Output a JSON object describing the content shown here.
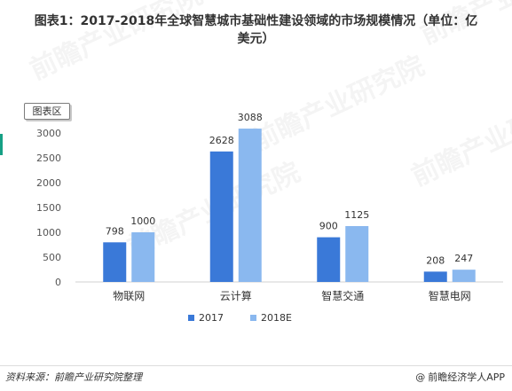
{
  "title_line1": "图表1：2017-2018年全球智慧城市基础性建设领域的市场规模情况（单位：亿",
  "title_line2": "美元）",
  "chart_area_label": "图表区",
  "watermark_text": "前瞻产业研究院",
  "footer": {
    "source": "资料来源：前瞻产业研究院整理",
    "brand_symbol": "@",
    "brand": "前瞻经济学人APP"
  },
  "colors": {
    "series_2017": "#3a79d8",
    "series_2018E": "#8ab8ef",
    "axis": "#d0d0d0",
    "edge_mark": "#16a085"
  },
  "chart_data": {
    "type": "bar",
    "categories": [
      "物联网",
      "云计算",
      "智慧交通",
      "智慧电网"
    ],
    "series": [
      {
        "name": "2017",
        "values": [
          798,
          2628,
          900,
          208
        ]
      },
      {
        "name": "2018E",
        "values": [
          1000,
          3088,
          1125,
          247
        ]
      }
    ],
    "y_ticks": [
      0,
      500,
      1000,
      1500,
      2000,
      2500,
      3000
    ],
    "ylim": [
      0,
      3100
    ],
    "legend_position": "bottom",
    "grid": false,
    "data_labels": true
  }
}
